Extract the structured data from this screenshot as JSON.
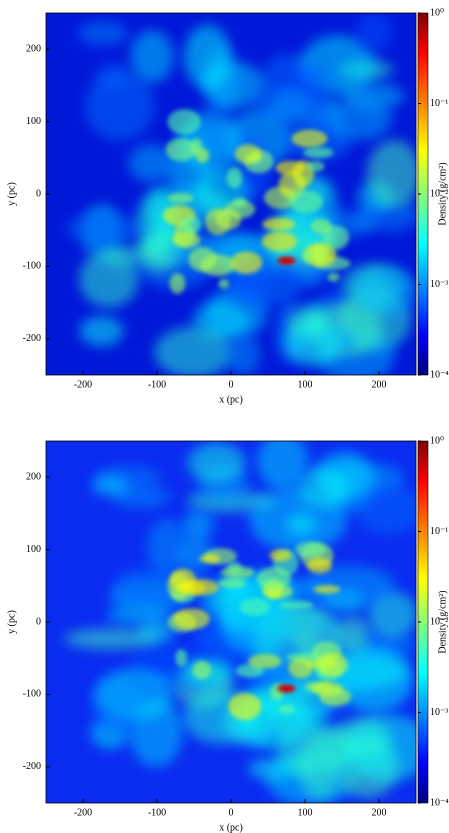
{
  "chart_data": [
    {
      "type": "image",
      "x_label": "x (pc)",
      "y_label": "y (pc)",
      "xlim": [
        -250,
        250
      ],
      "ylim": [
        -250,
        250
      ],
      "xticks": [
        -200,
        -100,
        0,
        100,
        200
      ],
      "yticks": [
        -200,
        -100,
        0,
        100,
        200
      ],
      "colorbar": {
        "label": "Density (g/cm²)",
        "colormap": "jet",
        "log_scale": true,
        "clim": [
          0.0001,
          1
        ],
        "ticks": [
          {
            "value": 0.0001,
            "label": "10⁻⁴"
          },
          {
            "value": 0.001,
            "label": "10⁻³"
          },
          {
            "value": 0.01,
            "label": "10⁻²"
          },
          {
            "value": 0.1,
            "label": "10⁻¹"
          },
          {
            "value": 1,
            "label": "10⁰"
          }
        ]
      }
    },
    {
      "type": "image",
      "x_label": "x (pc)",
      "y_label": "y (pc)",
      "xlim": [
        -250,
        250
      ],
      "ylim": [
        -250,
        250
      ],
      "xticks": [
        -200,
        -100,
        0,
        100,
        200
      ],
      "yticks": [
        -200,
        -100,
        0,
        100,
        200
      ],
      "colorbar": {
        "label": "Density (g/cm²)",
        "colormap": "jet",
        "log_scale": true,
        "clim": [
          0.0001,
          1
        ],
        "ticks": [
          {
            "value": 0.0001,
            "label": "10⁻⁴"
          },
          {
            "value": 0.001,
            "label": "10⁻³"
          },
          {
            "value": 0.01,
            "label": "10⁻²"
          },
          {
            "value": 0.1,
            "label": "10⁻¹"
          },
          {
            "value": 1,
            "label": "10⁰"
          }
        ]
      }
    }
  ]
}
